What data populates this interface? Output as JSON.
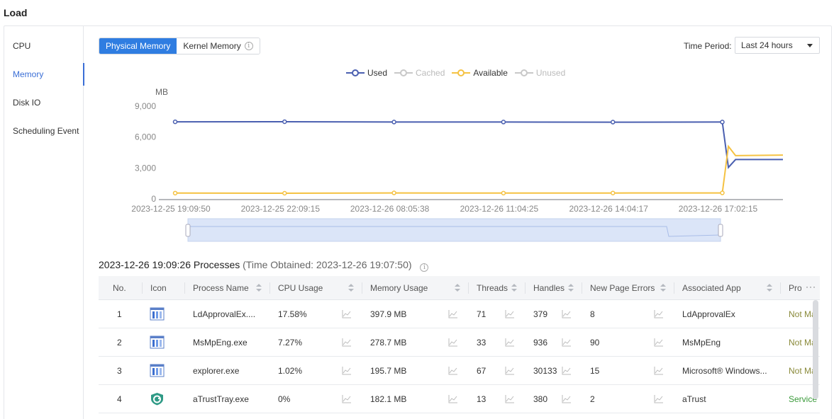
{
  "page": {
    "title": "Load"
  },
  "sidebar": {
    "items": [
      {
        "label": "CPU",
        "active": false
      },
      {
        "label": "Memory",
        "active": true
      },
      {
        "label": "Disk IO",
        "active": false
      },
      {
        "label": "Scheduling Event",
        "active": false
      }
    ]
  },
  "memory_tabs": {
    "physical": "Physical Memory",
    "kernel": "Kernel Memory",
    "active": "Physical Memory"
  },
  "time_period": {
    "label": "Time Period:",
    "value": "Last 24 hours"
  },
  "colors": {
    "used": "#4a5fb0",
    "cached": "#c8c8c8",
    "available": "#f5c242",
    "unused": "#c8c8c8",
    "accent": "#2f7de1"
  },
  "chart_data": {
    "type": "line",
    "title": "",
    "ylabel": "MB",
    "xlabel": "",
    "ylim": [
      0,
      9000
    ],
    "yticks": [
      "0",
      "3,000",
      "6,000",
      "9,000"
    ],
    "x_tick_labels": [
      "2023-12-25 19:09:50",
      "2023-12-25 22:09:15",
      "2023-12-26 08:05:38",
      "2023-12-26 11:04:25",
      "2023-12-26 14:04:17",
      "2023-12-26 17:02:15"
    ],
    "legend": [
      {
        "name": "Used",
        "enabled": true
      },
      {
        "name": "Cached",
        "enabled": false
      },
      {
        "name": "Available",
        "enabled": true
      },
      {
        "name": "Unused",
        "enabled": false
      }
    ],
    "grid": false,
    "legend_position": "top-center",
    "series": [
      {
        "name": "Used",
        "x": [
          "2023-12-25 19:09:50",
          "2023-12-25 22:09:15",
          "2023-12-26 08:05:38",
          "2023-12-26 11:04:25",
          "2023-12-26 14:04:17",
          "2023-12-26 17:02:15",
          "2023-12-26 17:15:00",
          "2023-12-26 17:30:00",
          "2023-12-26 19:09:26"
        ],
        "values": [
          7480,
          7490,
          7460,
          7460,
          7450,
          7460,
          3050,
          3820,
          3820
        ]
      },
      {
        "name": "Available",
        "x": [
          "2023-12-25 19:09:50",
          "2023-12-25 22:09:15",
          "2023-12-26 08:05:38",
          "2023-12-26 11:04:25",
          "2023-12-26 14:04:17",
          "2023-12-26 17:02:15",
          "2023-12-26 17:15:00",
          "2023-12-26 17:30:00",
          "2023-12-26 19:09:26"
        ],
        "values": [
          560,
          550,
          580,
          560,
          570,
          580,
          5100,
          4200,
          4250
        ]
      }
    ]
  },
  "processes": {
    "title": "2023-12-26 19:09:26 Processes",
    "time_obtained": "(Time Obtained: 2023-12-26 19:07:50)",
    "columns": [
      "No.",
      "Icon",
      "Process Name",
      "CPU Usage",
      "Memory Usage",
      "Threads",
      "Handles",
      "New Page Errors",
      "Associated App",
      "Pro"
    ],
    "more": "···",
    "rows": [
      {
        "no": "1",
        "icon": "window-app-icon",
        "name": "LdApprovalEx....",
        "cpu": "17.58%",
        "memory": "397.9 MB",
        "threads": "71",
        "handles": "379",
        "page_errors": "8",
        "app": "LdApprovalEx",
        "status": "Not Mar"
      },
      {
        "no": "2",
        "icon": "window-app-icon",
        "name": "MsMpEng.exe",
        "cpu": "7.27%",
        "memory": "278.7 MB",
        "threads": "33",
        "handles": "936",
        "page_errors": "90",
        "app": "MsMpEng",
        "status": "Not Mar"
      },
      {
        "no": "3",
        "icon": "window-app-icon",
        "name": "explorer.exe",
        "cpu": "1.02%",
        "memory": "195.7 MB",
        "threads": "67",
        "handles": "30133",
        "page_errors": "15",
        "app": "Microsoft® Windows...",
        "status": "Not Mar"
      },
      {
        "no": "4",
        "icon": "atrust-app-icon",
        "name": "aTrustTray.exe",
        "cpu": "0%",
        "memory": "182.1 MB",
        "threads": "13",
        "handles": "380",
        "page_errors": "2",
        "app": "aTrust",
        "status": "Service"
      }
    ]
  }
}
